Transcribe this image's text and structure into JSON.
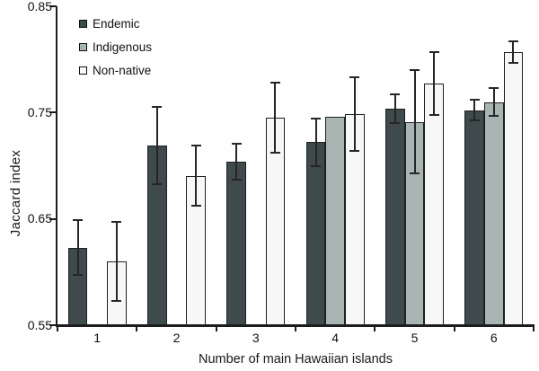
{
  "chart_data": {
    "type": "bar",
    "title": "",
    "xlabel": "Number of main Hawaiian islands",
    "ylabel": "Jaccard index",
    "categories": [
      "1",
      "2",
      "3",
      "4",
      "5",
      "6"
    ],
    "ylim": [
      0.55,
      0.85
    ],
    "yticks": [
      0.85,
      0.75,
      0.65,
      0.55
    ],
    "ytick_labels": [
      "0.85",
      "0.75",
      "0.65",
      "0.55"
    ],
    "grid": false,
    "legend_position": "top-left-inside",
    "axis_color": "#1c1c1c",
    "error_bar_color": "#262626",
    "series": [
      {
        "name": "Endemic",
        "color": "#3e4a4b",
        "values": [
          0.623,
          0.719,
          0.704,
          0.722,
          0.754,
          0.752
        ],
        "error_low": [
          0.597,
          0.683,
          0.687,
          0.7,
          0.74,
          0.743
        ],
        "error_high": [
          0.649,
          0.755,
          0.721,
          0.744,
          0.767,
          0.762
        ]
      },
      {
        "name": "Indigenous",
        "color": "#a9b5b2",
        "values": [
          null,
          null,
          null,
          0.746,
          0.741,
          0.76
        ],
        "error_low": [
          null,
          null,
          null,
          null,
          0.693,
          0.747
        ],
        "error_high": [
          null,
          null,
          null,
          null,
          0.79,
          0.773
        ]
      },
      {
        "name": "Non-native",
        "color": "#f7f8f5",
        "values": [
          0.61,
          0.69,
          0.745,
          0.749,
          0.777,
          0.807
        ],
        "error_low": [
          0.573,
          0.662,
          0.712,
          0.714,
          0.748,
          0.797
        ],
        "error_high": [
          0.647,
          0.719,
          0.778,
          0.783,
          0.807,
          0.817
        ]
      }
    ]
  }
}
